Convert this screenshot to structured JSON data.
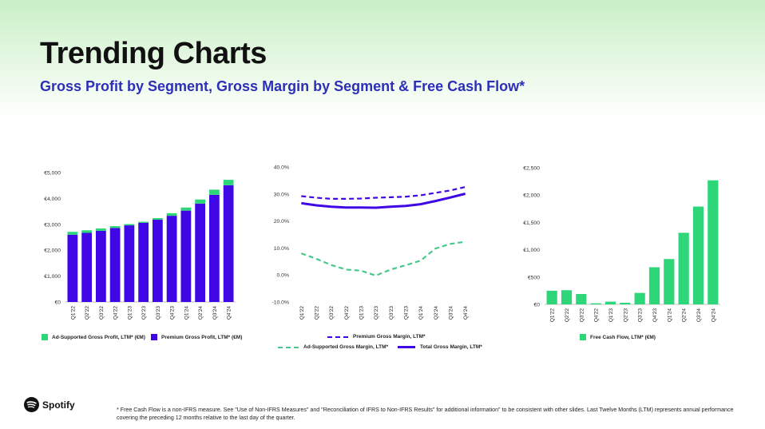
{
  "header": {
    "title": "Trending Charts",
    "subtitle": "Gross Profit by Segment, Gross Margin by Segment & Free Cash Flow*"
  },
  "colors": {
    "premium": "#3f06e6",
    "ad_supported": "#2ed67a",
    "subtitle": "#2d2fb8"
  },
  "brand": {
    "name": "Spotify",
    "icon": "spotify-logo-icon"
  },
  "footnote": "* Free Cash Flow is a non-IFRS measure. See \"Use of Non-IFRS Measures\" and \"Reconciliation of IFRS to Non-IFRS Results\" for additional information\" to be consistent with other slides. Last Twelve Months (LTM) represents annual performance covering the preceding 12 months relative to the last day of the quarter.",
  "chart_data": [
    {
      "type": "bar",
      "stacked": true,
      "categories": [
        "Q1'22",
        "Q2'22",
        "Q3'22",
        "Q4'22",
        "Q1'23",
        "Q2'23",
        "Q3'23",
        "Q4'23",
        "Q1'24",
        "Q2'24",
        "Q3'24",
        "Q4'24"
      ],
      "series": [
        {
          "name": "Premium Gross Profit, LTM* (€M)",
          "values": [
            2600,
            2670,
            2750,
            2860,
            2960,
            3060,
            3180,
            3330,
            3530,
            3800,
            4140,
            4510
          ],
          "color": "#3f06e6"
        },
        {
          "name": "Ad-Supported Gross Profit, LTM* (€M)",
          "values": [
            110,
            100,
            90,
            70,
            50,
            40,
            60,
            100,
            120,
            160,
            200,
            210
          ],
          "color": "#2ed67a"
        }
      ],
      "ylim": [
        0,
        5000
      ],
      "yticks": [
        0,
        1000,
        2000,
        3000,
        4000,
        5000
      ],
      "ytick_labels": [
        "€0",
        "€1,000",
        "€2,000",
        "€3,000",
        "€4,000",
        "€5,000"
      ],
      "legend": "bottom"
    },
    {
      "type": "line",
      "x": [
        "Q1'22",
        "Q2'22",
        "Q3'22",
        "Q4'22",
        "Q1'23",
        "Q2'23",
        "Q3'23",
        "Q4'23",
        "Q1'24",
        "Q2'24",
        "Q3'24",
        "Q4'24"
      ],
      "series": [
        {
          "name": "Premium Gross Margin, LTM*",
          "style": "dashed",
          "color": "#3f06e6",
          "values": [
            29.2,
            28.6,
            28.2,
            28.2,
            28.3,
            28.6,
            28.8,
            29.0,
            29.5,
            30.4,
            31.3,
            32.6
          ]
        },
        {
          "name": "Ad-Supported Gross Margin, LTM*",
          "style": "dashed",
          "color": "#48c98c",
          "values": [
            8.0,
            6.0,
            3.7,
            2.0,
            1.6,
            -0.2,
            2.0,
            3.6,
            5.3,
            9.8,
            11.5,
            12.3
          ]
        },
        {
          "name": "Total Gross Margin, LTM*",
          "style": "solid",
          "color": "#3f06e6",
          "values": [
            26.6,
            25.8,
            25.3,
            25.0,
            25.0,
            24.9,
            25.3,
            25.6,
            26.2,
            27.4,
            28.7,
            30.1
          ]
        }
      ],
      "ylim": [
        -10,
        40
      ],
      "yticks": [
        -10,
        0,
        10,
        20,
        30,
        40
      ],
      "ytick_labels": [
        "-10.0%",
        "0.0%",
        "10.0%",
        "20.0%",
        "30.0%",
        "40.0%"
      ],
      "legend": "bottom"
    },
    {
      "type": "bar",
      "categories": [
        "Q1'22",
        "Q2'22",
        "Q3'22",
        "Q4'22",
        "Q1'23",
        "Q2'23",
        "Q3'23",
        "Q4'23",
        "Q1'24",
        "Q2'24",
        "Q3'24",
        "Q4'24"
      ],
      "series": [
        {
          "name": "Free Cash Flow, LTM* (€M)",
          "values": [
            250,
            260,
            190,
            20,
            50,
            30,
            210,
            680,
            830,
            1310,
            1790,
            2270
          ],
          "color": "#2ed67a"
        }
      ],
      "ylim": [
        0,
        2500
      ],
      "yticks": [
        0,
        500,
        1000,
        1500,
        2000,
        2500
      ],
      "ytick_labels": [
        "€0",
        "€500",
        "€1,000",
        "€1,500",
        "€2,000",
        "€2,500"
      ],
      "legend": "bottom"
    }
  ]
}
